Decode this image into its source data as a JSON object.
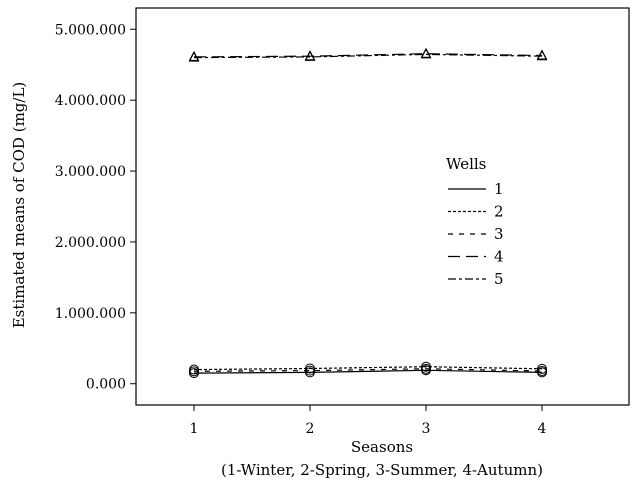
{
  "chart_data": {
    "type": "line",
    "title": "",
    "xlabel": "Seasons",
    "xlabel_note": "(1-Winter, 2-Spring, 3-Summer, 4-Autumn)",
    "ylabel": "Estimated means of COD (mg/L)",
    "x": [
      1,
      2,
      3,
      4
    ],
    "xticks": [
      "1",
      "2",
      "3",
      "4"
    ],
    "xlim": [
      0.5,
      4.75
    ],
    "yticks": [
      "0.000",
      "1.000.000",
      "2.000.000",
      "3.000.000",
      "4.000.000",
      "5.000.000"
    ],
    "ytick_values": [
      0,
      1000000,
      2000000,
      3000000,
      4000000,
      5000000
    ],
    "ylim": [
      -300000,
      5300000
    ],
    "grid": false,
    "legend_title": "Wells",
    "legend_position": "center-right",
    "series": [
      {
        "name": "1",
        "style": "solid",
        "marker": "circle",
        "values": [
          150000,
          160000,
          190000,
          160000
        ]
      },
      {
        "name": "2",
        "style": "dotted",
        "marker": "circle",
        "values": [
          200000,
          215000,
          240000,
          210000
        ]
      },
      {
        "name": "3",
        "style": "dashed",
        "marker": "circle",
        "values": [
          175000,
          185000,
          210000,
          180000
        ]
      },
      {
        "name": "4",
        "style": "longdash",
        "marker": "triangle",
        "values": [
          4610000,
          4620000,
          4655000,
          4630000
        ]
      },
      {
        "name": "5",
        "style": "dashdot",
        "marker": "triangle",
        "values": [
          4600000,
          4610000,
          4645000,
          4620000
        ]
      }
    ]
  }
}
